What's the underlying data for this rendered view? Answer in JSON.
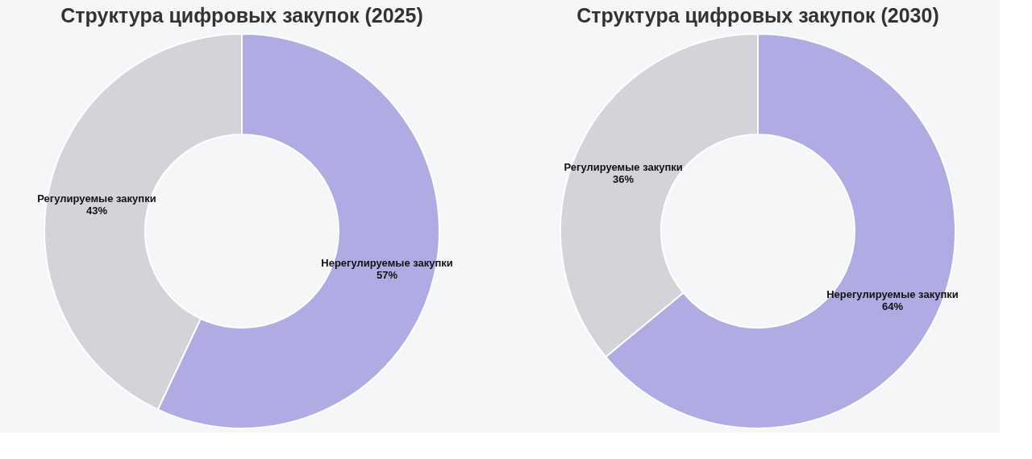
{
  "chart_data": [
    {
      "type": "donut",
      "title": "Структура цифровых закупок (2025)",
      "categories": [
        "Нерегулируемые закупки",
        "Регулируемые закупки"
      ],
      "values": [
        57,
        43
      ],
      "colors": [
        "#b0ace3",
        "#d5d2d9"
      ],
      "value_labels": [
        "57%",
        "43%"
      ],
      "legend": false
    },
    {
      "type": "donut",
      "title": "Структура цифровых закупок (2030)",
      "categories": [
        "Нерегулируемые закупки",
        "Регулируемые закупки"
      ],
      "values": [
        64,
        36
      ],
      "colors": [
        "#b0ace3",
        "#d5d2d9"
      ],
      "value_labels": [
        "64%",
        "36%"
      ],
      "legend": false
    }
  ]
}
